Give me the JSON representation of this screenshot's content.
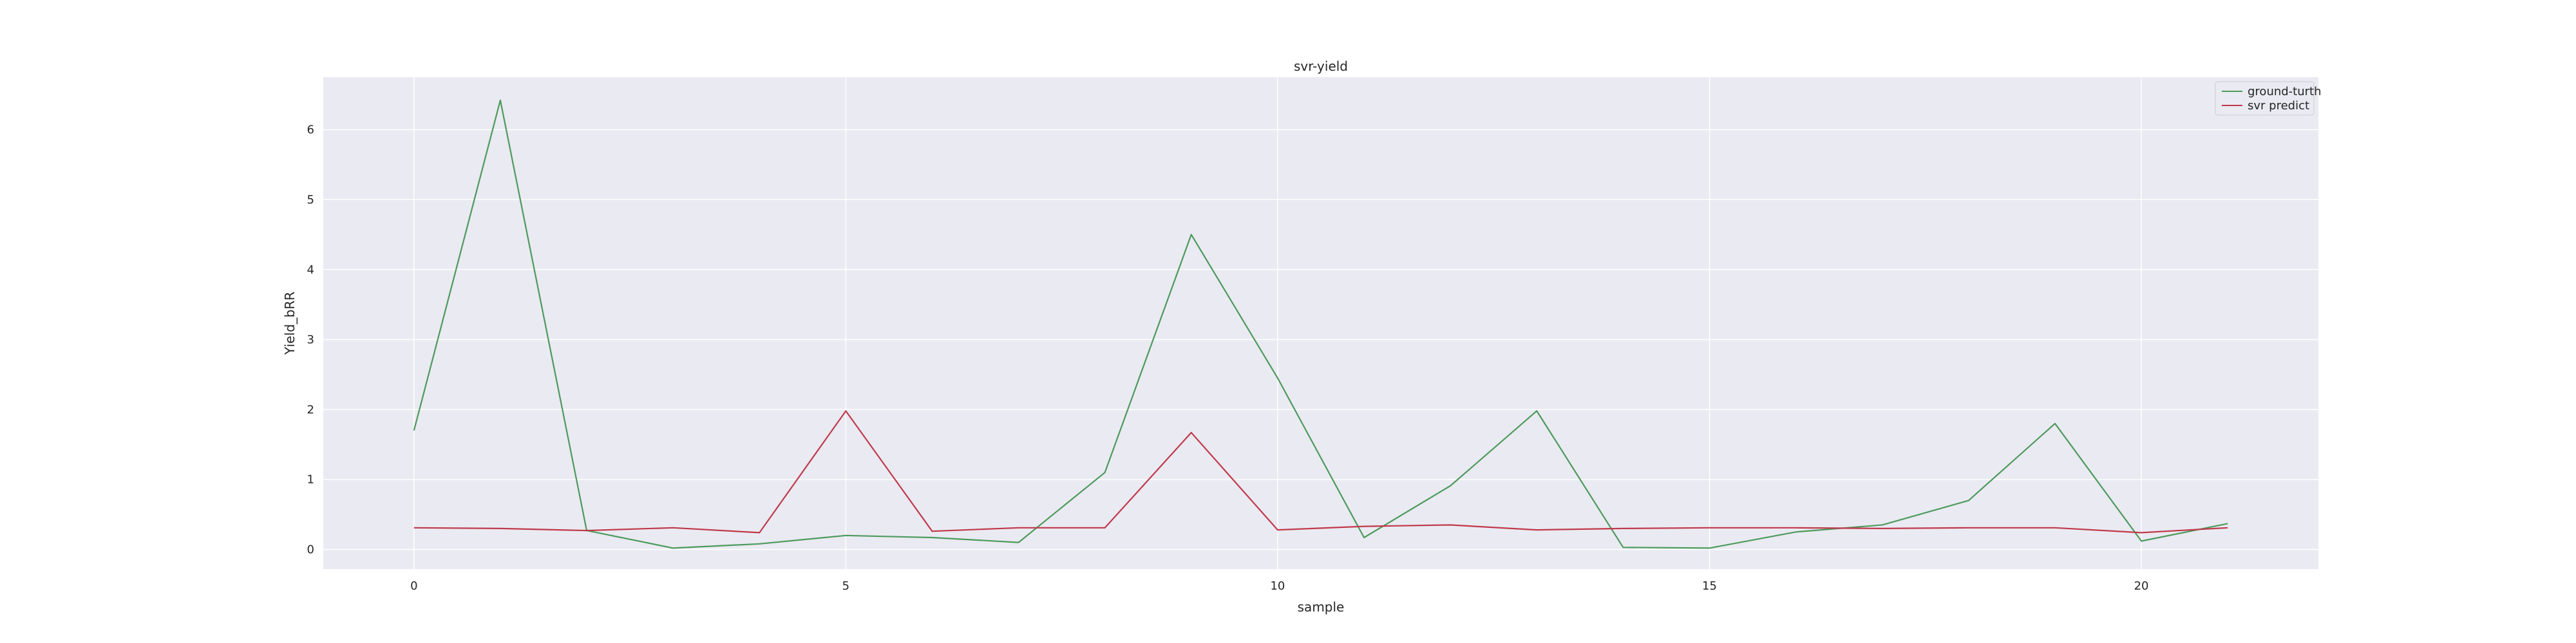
{
  "chart_data": {
    "type": "line",
    "title": "svr-yield",
    "xlabel": "sample",
    "ylabel": "Yield_bRR",
    "xlim": [
      -1.05,
      22.05
    ],
    "ylim": [
      -0.28,
      6.75
    ],
    "xticks": [
      0,
      5,
      10,
      15,
      20
    ],
    "yticks": [
      0,
      1,
      2,
      3,
      4,
      5,
      6
    ],
    "grid": true,
    "legend_position": "top-right",
    "x": [
      0,
      1,
      2,
      3,
      4,
      5,
      6,
      7,
      8,
      9,
      10,
      11,
      12,
      13,
      14,
      15,
      16,
      17,
      18,
      19,
      20,
      21
    ],
    "series": [
      {
        "name": "ground-turth",
        "color": "#4c9a5c",
        "values": [
          1.7,
          6.42,
          0.27,
          0.02,
          0.08,
          0.2,
          0.17,
          0.1,
          1.1,
          4.5,
          2.45,
          0.17,
          0.91,
          1.98,
          0.03,
          0.02,
          0.25,
          0.35,
          0.7,
          1.8,
          0.12,
          0.37
        ]
      },
      {
        "name": "svr predict",
        "color": "#c0394b",
        "values": [
          0.31,
          0.3,
          0.27,
          0.31,
          0.24,
          1.98,
          0.26,
          0.31,
          0.31,
          1.67,
          0.28,
          0.33,
          0.35,
          0.28,
          0.3,
          0.31,
          0.31,
          0.3,
          0.31,
          0.31,
          0.24,
          0.31
        ]
      }
    ]
  }
}
